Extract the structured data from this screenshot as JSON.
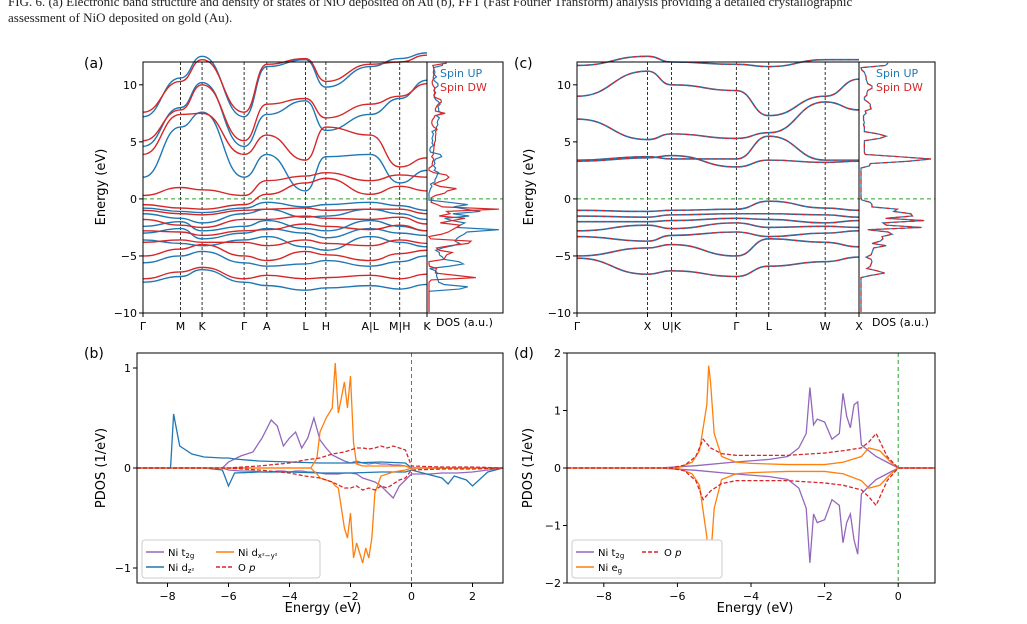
{
  "caption": {
    "line1": "FIG. 6. (a) Electronic band structure and density of states of NiO deposited on Au (b), FFT (Fast Fourier Transform) analysis providing a detailed crystallographic",
    "line2": "assessment of NiO deposited on gold (Au)."
  },
  "colors": {
    "spin_up": "#1f77b4",
    "spin_dw": "#d62728",
    "ni_t2g": "#9467bd",
    "ni_dz2": "#1f77b4",
    "ni_dx2y2": "#ff7f0e",
    "ni_eg": "#ff7f0e",
    "o_p": "#d62728",
    "fermi": "#2ca02c",
    "axis": "#000000"
  },
  "chart_data": [
    {
      "panel": "(a)",
      "type": "line",
      "title": "",
      "ylabel": "Energy (eV)",
      "xlabel": "",
      "ylim": [
        -10,
        12
      ],
      "yticks": [
        -10,
        -5,
        0,
        5,
        10
      ],
      "kpath": [
        "Γ",
        "M",
        "K",
        "Γ",
        "A",
        "L",
        "H",
        "A|L",
        "M|H",
        "K"
      ],
      "kpos": [
        0,
        0.165,
        0.26,
        0.445,
        0.545,
        0.715,
        0.805,
        1.0,
        1.13,
        1.25
      ],
      "dos_label": "DOS (a.u.)",
      "fermi_level": 0,
      "legend": [
        "Spin UP",
        "Spin DW"
      ],
      "legend_position": "top-right",
      "series": [
        {
          "name": "Spin UP",
          "bands": [
            [
              -7.3,
              -6.8,
              -6.2,
              -7.3,
              -7.6,
              -8.0,
              -7.8,
              -7.6,
              -7.9,
              -7.5
            ],
            [
              -5.6,
              -5.0,
              -4.6,
              -5.6,
              -5.9,
              -5.7,
              -5.4,
              -5.9,
              -5.5,
              -5.0
            ],
            [
              -3.6,
              -3.9,
              -4.1,
              -3.6,
              -3.3,
              -4.2,
              -4.5,
              -3.3,
              -3.8,
              -4.2
            ],
            [
              -3.0,
              -2.6,
              -3.5,
              -3.0,
              -2.6,
              -3.0,
              -3.4,
              -2.6,
              -3.0,
              -3.2
            ],
            [
              -2.4,
              -2.0,
              -2.8,
              -2.4,
              -1.9,
              -2.6,
              -2.8,
              -1.9,
              -2.4,
              -2.8
            ],
            [
              -1.3,
              -1.7,
              -2.1,
              -1.3,
              -0.9,
              -1.6,
              -1.5,
              -0.9,
              -1.3,
              -1.8
            ],
            [
              -0.8,
              -1.1,
              -1.2,
              -0.8,
              -0.3,
              -0.7,
              -0.5,
              -0.3,
              -0.6,
              -1.0
            ],
            [
              1.9,
              6.3,
              7.6,
              1.9,
              3.9,
              0.7,
              3.7,
              3.9,
              1.4,
              2.5
            ],
            [
              4.6,
              8.0,
              10.2,
              4.6,
              7.4,
              8.6,
              6.0,
              7.4,
              8.8,
              10.4
            ],
            [
              7.2,
              10.6,
              12.5,
              7.2,
              11.6,
              12.2,
              9.8,
              11.6,
              12.3,
              12.8
            ]
          ]
        },
        {
          "name": "Spin DW",
          "bands": [
            [
              -7.0,
              -6.4,
              -6.0,
              -7.0,
              -6.7,
              -7.0,
              -6.9,
              -6.7,
              -7.0,
              -6.6
            ],
            [
              -5.0,
              -4.4,
              -4.0,
              -5.0,
              -5.4,
              -4.6,
              -4.9,
              -5.4,
              -4.8,
              -4.5
            ],
            [
              -3.8,
              -3.6,
              -3.8,
              -3.8,
              -4.1,
              -3.6,
              -3.9,
              -4.1,
              -3.6,
              -3.9
            ],
            [
              -2.8,
              -2.9,
              -3.2,
              -2.8,
              -2.7,
              -2.2,
              -2.4,
              -2.7,
              -2.3,
              -2.8
            ],
            [
              -1.8,
              -2.3,
              -2.5,
              -1.8,
              -1.8,
              -1.5,
              -1.7,
              -1.8,
              -1.6,
              -2.2
            ],
            [
              -1.0,
              -1.3,
              -1.4,
              -1.0,
              -0.9,
              -0.8,
              -1.0,
              -0.9,
              -0.9,
              -1.3
            ],
            [
              -0.5,
              -0.8,
              -0.9,
              -0.5,
              0.4,
              1.4,
              1.8,
              0.4,
              1.1,
              0.7
            ],
            [
              0.3,
              1.0,
              0.8,
              0.3,
              1.6,
              2.0,
              2.3,
              1.6,
              2.1,
              1.9
            ],
            [
              3.9,
              7.4,
              7.5,
              3.9,
              5.6,
              3.4,
              6.3,
              5.6,
              2.8,
              3.6
            ],
            [
              5.1,
              7.8,
              10.0,
              5.1,
              8.3,
              8.8,
              7.1,
              8.3,
              9.0,
              10.1
            ],
            [
              7.6,
              10.3,
              12.2,
              7.6,
              11.8,
              12.3,
              10.3,
              11.8,
              12.0,
              12.6
            ]
          ]
        }
      ]
    },
    {
      "panel": "(b)",
      "type": "line",
      "title": "",
      "xlabel": "Energy (eV)",
      "ylabel": "PDOS (1/eV)",
      "xlim": [
        -9,
        3
      ],
      "ylim": [
        -1.15,
        1.15
      ],
      "xticks": [
        -8,
        -6,
        -4,
        -2,
        0,
        2
      ],
      "yticks": [
        -1,
        0,
        1
      ],
      "fermi_level": 0,
      "legend_position": "bottom-left",
      "series": [
        {
          "name": "Ni t2g",
          "x": [
            -9,
            -6.2,
            -6.0,
            -5.6,
            -5.2,
            -4.9,
            -4.6,
            -4.4,
            -4.2,
            -4.0,
            -3.8,
            -3.6,
            -3.4,
            -3.2,
            -3.0,
            -2.8,
            -2.6,
            -2.4,
            -2.2,
            -2.0,
            -1.8,
            -1.6,
            -1.4,
            -1.2,
            -1.0,
            -0.8,
            -0.6,
            -0.4,
            -0.2,
            0,
            0.3,
            0.6,
            1.0,
            1.5,
            2.0,
            2.5,
            3
          ],
          "up": [
            0,
            0,
            0.06,
            0.12,
            0.16,
            0.3,
            0.48,
            0.42,
            0.22,
            0.3,
            0.36,
            0.2,
            0.3,
            0.5,
            0.28,
            0.2,
            0.13,
            0.1,
            0.07,
            0.05,
            0.07,
            0.05,
            0.04,
            0.05,
            0.04,
            0.04,
            0.03,
            0.03,
            0.02,
            0,
            0,
            0,
            0,
            0,
            0,
            0,
            0
          ],
          "down": [
            0,
            0,
            -0.02,
            -0.03,
            -0.03,
            -0.04,
            -0.04,
            -0.03,
            -0.03,
            -0.04,
            -0.03,
            -0.03,
            -0.04,
            -0.04,
            -0.05,
            -0.06,
            -0.06,
            -0.06,
            -0.05,
            -0.05,
            -0.06,
            -0.1,
            -0.12,
            -0.14,
            -0.18,
            -0.24,
            -0.3,
            -0.18,
            -0.12,
            -0.06,
            -0.06,
            -0.06,
            -0.05,
            -0.05,
            -0.04,
            -0.02,
            0
          ]
        },
        {
          "name": "Ni dz2",
          "x": [
            -9,
            -7.9,
            -7.8,
            -7.6,
            -7.2,
            -6.8,
            -6.2,
            -6.0,
            -5.8,
            -5.0,
            -4.0,
            -3.0,
            -2.0,
            -1.0,
            -0.2,
            0,
            1.0,
            1.2,
            1.4,
            1.8,
            2.0,
            2.5,
            3
          ],
          "up": [
            0,
            0,
            0.54,
            0.22,
            0.14,
            0.11,
            0.1,
            0.1,
            0.09,
            0.07,
            0.06,
            0.05,
            0.05,
            0.06,
            0.05,
            0,
            0,
            0,
            0,
            0,
            0,
            0,
            0
          ],
          "down": [
            0,
            0,
            0,
            0,
            0,
            0,
            -0.02,
            -0.18,
            -0.05,
            -0.04,
            -0.04,
            -0.05,
            -0.05,
            -0.04,
            -0.04,
            -0.02,
            -0.1,
            -0.16,
            -0.08,
            -0.12,
            -0.18,
            -0.04,
            0
          ]
        },
        {
          "name": "Ni dx2-y2",
          "x": [
            -9,
            -3.3,
            -3.1,
            -3.0,
            -2.8,
            -2.6,
            -2.5,
            -2.4,
            -2.3,
            -2.2,
            -2.1,
            -2.0,
            -1.9,
            -1.8,
            -1.7,
            -1.6,
            -1.5,
            -1.4,
            -1.3,
            -1.2,
            -1.0,
            -0.6,
            -0.2,
            0,
            3
          ],
          "up": [
            0,
            0,
            0.1,
            0.36,
            0.5,
            0.6,
            1.05,
            0.55,
            0.7,
            0.86,
            0.6,
            0.92,
            0.25,
            0.04,
            0.03,
            0.02,
            0.02,
            0.02,
            0.02,
            0.02,
            0.02,
            0.02,
            0.02,
            0,
            0
          ],
          "down": [
            0,
            0,
            -0.06,
            -0.1,
            -0.12,
            -0.14,
            -0.18,
            -0.2,
            -0.4,
            -0.6,
            -0.7,
            -0.45,
            -0.9,
            -0.75,
            -0.85,
            -0.95,
            -0.8,
            -0.9,
            -0.7,
            -0.25,
            -0.08,
            -0.04,
            -0.02,
            0,
            0
          ]
        },
        {
          "name": "O p",
          "x": [
            -9,
            -6.0,
            -5.0,
            -4.0,
            -3.5,
            -3.0,
            -2.6,
            -2.2,
            -2.0,
            -1.8,
            -1.6,
            -1.4,
            -1.2,
            -1.0,
            -0.8,
            -0.6,
            -0.4,
            -0.2,
            0,
            1,
            2,
            3
          ],
          "up": [
            0,
            0,
            0.02,
            0.05,
            0.08,
            0.1,
            0.14,
            0.16,
            0.18,
            0.2,
            0.2,
            0.19,
            0.2,
            0.22,
            0.2,
            0.22,
            0.2,
            0.18,
            0.02,
            0.01,
            0.01,
            0
          ],
          "down": [
            0,
            0,
            -0.02,
            -0.05,
            -0.08,
            -0.1,
            -0.14,
            -0.2,
            -0.2,
            -0.18,
            -0.22,
            -0.2,
            -0.22,
            -0.18,
            -0.2,
            -0.16,
            -0.12,
            -0.1,
            -0.02,
            -0.01,
            -0.01,
            0
          ]
        }
      ]
    },
    {
      "panel": "(c)",
      "type": "line",
      "title": "",
      "ylabel": "Energy (eV)",
      "xlabel": "",
      "ylim": [
        -10,
        12
      ],
      "yticks": [
        -10,
        -5,
        0,
        5,
        10
      ],
      "kpath": [
        "Γ",
        "X",
        "U|K",
        "Γ",
        "L",
        "W",
        "X"
      ],
      "kpos": [
        0,
        0.25,
        0.335,
        0.565,
        0.68,
        0.88,
        1.0
      ],
      "dos_label": "DOS (a.u.)",
      "fermi_level": 0,
      "legend": [
        "Spin UP",
        "Spin DW"
      ],
      "legend_position": "top-right",
      "bands": [
        [
          -5.2,
          -6.6,
          -6.3,
          -6.8,
          -5.9,
          -5.5,
          -5.1
        ],
        [
          -5.0,
          -4.3,
          -4.0,
          -5.0,
          -3.5,
          -3.8,
          -4.2
        ],
        [
          -3.3,
          -3.7,
          -3.2,
          -2.9,
          -3.3,
          -3.0,
          -2.8
        ],
        [
          -2.8,
          -2.3,
          -2.6,
          -2.1,
          -2.5,
          -2.4,
          -2.5
        ],
        [
          -2.0,
          -2.0,
          -1.9,
          -1.7,
          -1.8,
          -2.1,
          -1.9
        ],
        [
          -1.5,
          -1.6,
          -1.4,
          -1.3,
          -1.3,
          -1.4,
          -1.6
        ],
        [
          -1.0,
          -1.1,
          -1.0,
          -0.9,
          -0.2,
          -0.8,
          -1.0
        ],
        [
          3.3,
          3.6,
          3.8,
          2.8,
          3.4,
          3.2,
          3.3
        ],
        [
          3.4,
          3.7,
          3.5,
          3.5,
          5.5,
          3.4,
          3.4
        ],
        [
          7.0,
          5.2,
          5.7,
          5.3,
          5.8,
          8.5,
          7.8
        ],
        [
          9.0,
          11.2,
          10.0,
          9.5,
          7.3,
          9.0,
          10.5
        ],
        [
          11.7,
          12.5,
          12.0,
          11.8,
          11.6,
          12.2,
          12.2
        ]
      ]
    },
    {
      "panel": "(d)",
      "type": "line",
      "title": "",
      "xlabel": "Energy (eV)",
      "ylabel": "PDOS (1/eV)",
      "xlim": [
        -9,
        1
      ],
      "ylim": [
        -2,
        2
      ],
      "xticks": [
        -8,
        -6,
        -4,
        -2,
        0
      ],
      "yticks": [
        -2,
        -1,
        0,
        1,
        2
      ],
      "fermi_level": 0,
      "legend_position": "bottom-left",
      "series": [
        {
          "name": "Ni t2g",
          "x": [
            -9,
            -6.5,
            -5.5,
            -4.5,
            -3.5,
            -3.0,
            -2.7,
            -2.5,
            -2.4,
            -2.3,
            -2.2,
            -2.0,
            -1.8,
            -1.6,
            -1.5,
            -1.4,
            -1.3,
            -1.2,
            -1.1,
            -1.0,
            -0.8,
            -0.6,
            -0.3,
            0,
            1
          ],
          "up": [
            0,
            0,
            0.04,
            0.1,
            0.15,
            0.2,
            0.35,
            0.6,
            1.4,
            0.75,
            0.85,
            0.8,
            0.5,
            0.6,
            1.3,
            0.9,
            0.7,
            1.1,
            1.15,
            0.4,
            0.3,
            0.2,
            0.1,
            0,
            0
          ],
          "down": [
            0,
            0,
            -0.04,
            -0.1,
            -0.15,
            -0.2,
            -0.35,
            -0.7,
            -1.65,
            -0.8,
            -0.95,
            -0.9,
            -0.55,
            -0.65,
            -1.3,
            -0.95,
            -0.8,
            -1.25,
            -1.5,
            -0.45,
            -0.32,
            -0.2,
            -0.1,
            0,
            0
          ]
        },
        {
          "name": "Ni eg",
          "x": [
            -9,
            -6.0,
            -5.6,
            -5.4,
            -5.2,
            -5.15,
            -5.1,
            -5.0,
            -4.8,
            -4.4,
            -4.0,
            -3.0,
            -2.0,
            -1.5,
            -1.0,
            -0.8,
            -0.5,
            -0.2,
            0,
            1
          ],
          "up": [
            0,
            0,
            0.1,
            0.3,
            1.1,
            1.78,
            1.5,
            0.6,
            0.2,
            0.1,
            0.08,
            0.06,
            0.06,
            0.1,
            0.2,
            0.35,
            0.3,
            0.1,
            0,
            0
          ],
          "down": [
            0,
            0,
            -0.1,
            -0.3,
            -1.2,
            -1.82,
            -1.6,
            -0.7,
            -0.2,
            -0.1,
            -0.08,
            -0.06,
            -0.06,
            -0.1,
            -0.22,
            -0.35,
            -0.3,
            -0.1,
            0,
            0
          ]
        },
        {
          "name": "O p",
          "x": [
            -9,
            -6.2,
            -5.8,
            -5.5,
            -5.3,
            -5.1,
            -4.8,
            -4.4,
            -4.0,
            -3.0,
            -2.0,
            -1.5,
            -1.0,
            -0.8,
            -0.6,
            -0.3,
            0,
            1
          ],
          "up": [
            0,
            0,
            0.05,
            0.2,
            0.5,
            0.35,
            0.25,
            0.22,
            0.22,
            0.22,
            0.26,
            0.3,
            0.35,
            0.45,
            0.6,
            0.2,
            0,
            0
          ],
          "down": [
            0,
            0,
            -0.05,
            -0.22,
            -0.55,
            -0.4,
            -0.27,
            -0.22,
            -0.22,
            -0.22,
            -0.26,
            -0.3,
            -0.38,
            -0.5,
            -0.65,
            -0.22,
            0,
            0
          ]
        }
      ]
    }
  ],
  "legend_labels": {
    "spin_up": "Spin UP",
    "spin_dw": "Spin DW",
    "ni_t2g_base": "Ni t",
    "ni_t2g_sub": "2g",
    "ni_dz2_base": "Ni d",
    "ni_dz2_sub": "z²",
    "ni_dx2y2_base": "Ni d",
    "ni_dx2y2_sub": "x²−y²",
    "ni_eg_base": "Ni e",
    "ni_eg_sub": "g",
    "o_p_base": "O ",
    "o_p_italic": "p"
  }
}
